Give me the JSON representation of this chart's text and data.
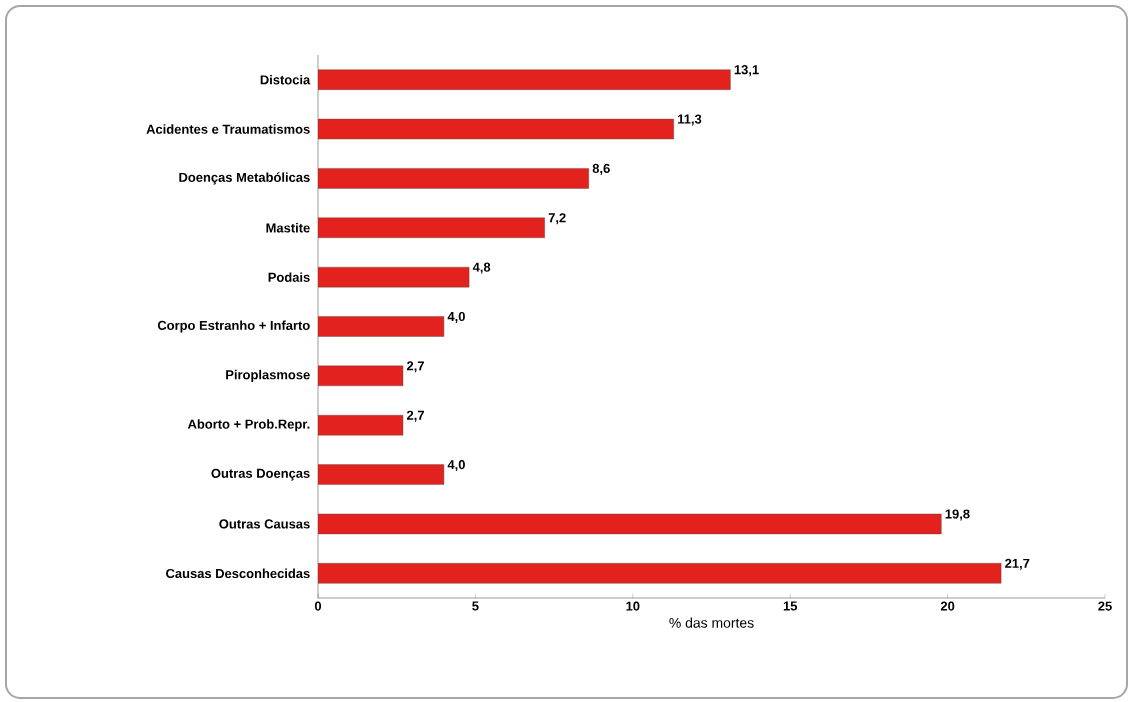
{
  "chart_data": {
    "type": "bar",
    "orientation": "horizontal",
    "xlabel": "% das mortes",
    "categories": [
      "Distocia",
      "Acidentes e Traumatismos",
      "Doenças Metabólicas",
      "Mastite",
      "Podais",
      "Corpo Estranho + Infarto",
      "Piroplasmose",
      "Aborto + Prob.Repr.",
      "Outras Doenças",
      "Outras Causas",
      "Causas Desconhecidas"
    ],
    "values": [
      13.1,
      11.3,
      8.6,
      7.2,
      4.8,
      4.0,
      2.7,
      2.7,
      4.0,
      19.8,
      21.7
    ],
    "value_labels": [
      "13,1",
      "11,3",
      "8,6",
      "7,2",
      "4,8",
      "4,0",
      "2,7",
      "2,7",
      "4,0",
      "19,8",
      "21,7"
    ],
    "color": "#e3221e",
    "xlim": [
      0,
      25
    ],
    "xticks": [
      0,
      5,
      10,
      15,
      20,
      25
    ]
  }
}
